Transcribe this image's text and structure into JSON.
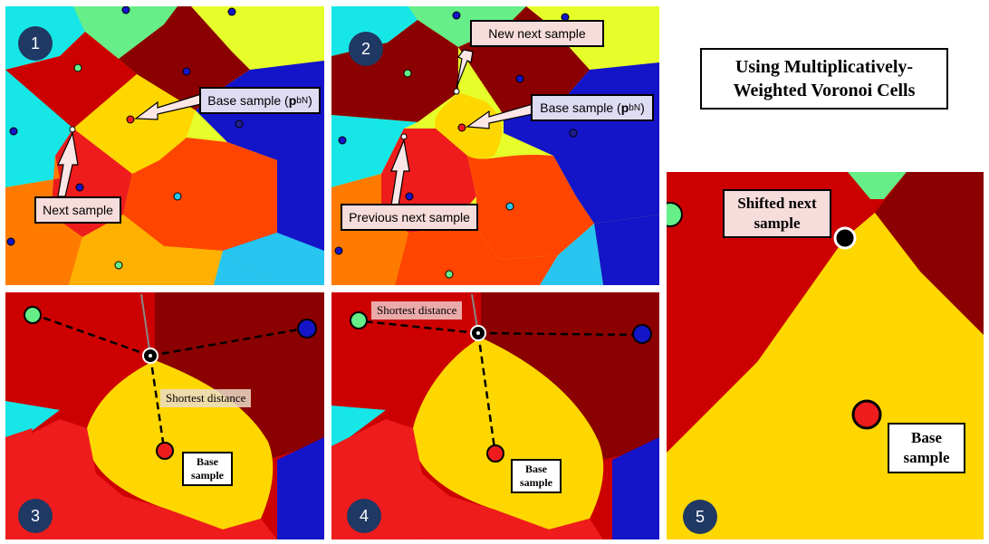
{
  "title": {
    "line1": "Using Multiplicatively-",
    "line2": "Weighted Voronoi Cells"
  },
  "panel1": {
    "number": "1",
    "base_label": "Base sample (",
    "base_label_p": "p",
    "base_label_sub": "bN",
    "base_label_end": ")",
    "next_label": "Next sample"
  },
  "panel2": {
    "number": "2",
    "new_next_label": "New next sample",
    "base_label": "Base sample (",
    "base_label_p": "p",
    "base_label_sub": "bN",
    "base_label_end": ")",
    "prev_next_label": "Previous next sample"
  },
  "panel3": {
    "number": "3",
    "shortest_label": "Shortest distance",
    "base_line1": "Base",
    "base_line2": "sample"
  },
  "panel4": {
    "number": "4",
    "shortest_label": "Shortest distance",
    "base_line1": "Base",
    "base_line2": "sample"
  },
  "panel5": {
    "number": "5",
    "shifted_line1": "Shifted next",
    "shifted_line2": "sample",
    "base_line1": "Base",
    "base_line2": "sample"
  },
  "colors": {
    "darkred": "#8b0000",
    "red": "#cc0000",
    "brightred": "#ee1c1c",
    "orange": "#ff4500",
    "orange2": "#ff7b00",
    "yellow": "#ffd700",
    "lime": "#e6ff2a",
    "cyan": "#17e6e6",
    "blue": "#1414c8",
    "navy": "#1f3864",
    "green": "#66ee88",
    "skyblue": "#27c5f0"
  }
}
